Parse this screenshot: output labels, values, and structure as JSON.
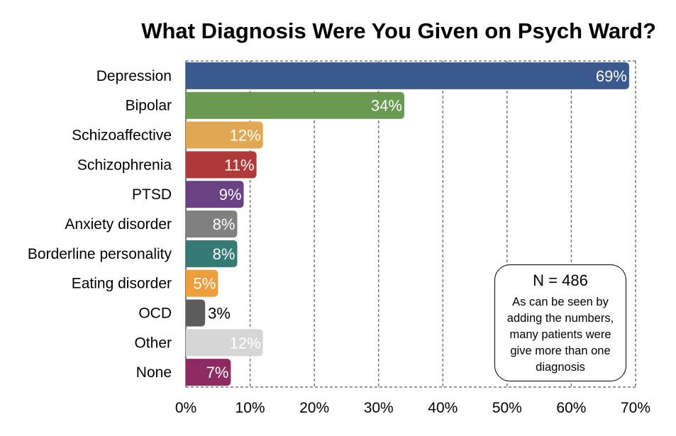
{
  "chart_data": {
    "type": "bar",
    "orientation": "horizontal",
    "title": "What Diagnosis Were You Given on Psych Ward?",
    "categories": [
      "Depression",
      "Bipolar",
      "Schizoaffective",
      "Schizophrenia",
      "PTSD",
      "Anxiety disorder",
      "Borderline personality",
      "Eating disorder",
      "OCD",
      "Other",
      "None"
    ],
    "values": [
      69,
      34,
      12,
      11,
      9,
      8,
      8,
      5,
      3,
      12,
      7
    ],
    "value_labels": [
      "69%",
      "34%",
      "12%",
      "11%",
      "9%",
      "8%",
      "8%",
      "5%",
      "3%",
      "12%",
      "7%"
    ],
    "colors": [
      "#3a5a8e",
      "#6a9a52",
      "#e0a853",
      "#b03a3a",
      "#6a4283",
      "#808080",
      "#357a75",
      "#ee9e3a",
      "#5c5c5c",
      "#d6d6d6",
      "#8e2a62"
    ],
    "label_colors": [
      "#ffffff",
      "#ffffff",
      "#ffffff",
      "#ffffff",
      "#ffffff",
      "#ffffff",
      "#ffffff",
      "#ffffff",
      "#000000",
      "#ffffff",
      "#ffffff"
    ],
    "xlim": [
      0,
      70
    ],
    "xticks": [
      0,
      10,
      20,
      30,
      40,
      50,
      60,
      70
    ],
    "xtick_labels": [
      "0%",
      "10%",
      "20%",
      "30%",
      "40%",
      "50%",
      "60%",
      "70%"
    ],
    "xlabel": "",
    "ylabel": "",
    "grid": "vertical dashed"
  },
  "annotation": {
    "n_text": "N = 486",
    "note": "As can be seen by\nadding the numbers,\nmany patients were\ngive more than one\ndiagnosis"
  }
}
